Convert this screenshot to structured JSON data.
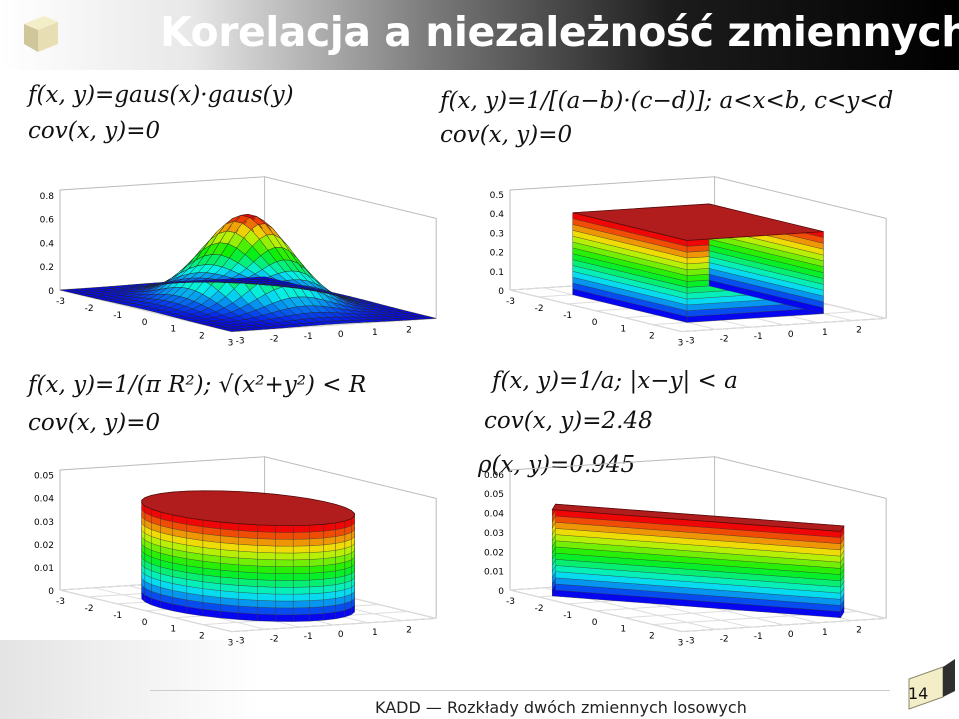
{
  "title": "Korelacja a niezależność zmiennych",
  "footer": "KADD — Rozkłady dwóch zmiennych losowych",
  "page_number": "14",
  "panels": [
    {
      "f": "f(x, y)=gaus(x)·gaus(y)",
      "cov": "cov(x, y)=0",
      "rho": "",
      "z_ticks": [
        "0",
        "0.2",
        "0.4",
        "0.6",
        "0.8"
      ]
    },
    {
      "f": "f(x, y)=1/[(a−b)·(c−d)]; a<x<b, c<y<d",
      "cov": "cov(x, y)=0",
      "rho": "",
      "z_ticks": [
        "0",
        "0.1",
        "0.2",
        "0.3",
        "0.4",
        "0.5"
      ]
    },
    {
      "f": "f(x, y)=1/(π R²); √(x²+y²) < R",
      "cov": "cov(x, y)=0",
      "rho": "",
      "z_ticks": [
        "0",
        "0.01",
        "0.02",
        "0.03",
        "0.04",
        "0.05"
      ]
    },
    {
      "f": "f(x, y)=1/a; |x−y| < a",
      "cov": "cov(x, y)=2.48",
      "rho": "ρ(x, y)=0.945",
      "z_ticks": [
        "0",
        "0.01",
        "0.02",
        "0.03",
        "0.04",
        "0.05",
        "0.06"
      ]
    }
  ],
  "axis_ticks": [
    "-3",
    "-2",
    "-1",
    "0",
    "1",
    "2",
    "3"
  ]
}
